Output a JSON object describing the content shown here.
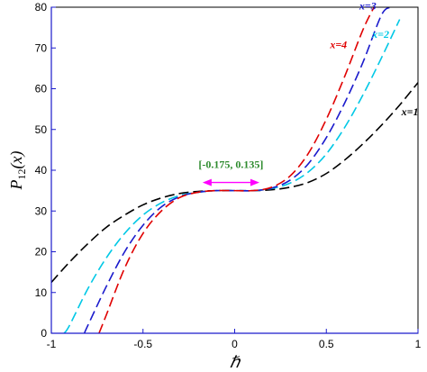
{
  "chart_data": {
    "type": "line",
    "xlabel": "ℏ",
    "ylabel": "P12(x)",
    "ylabel_parts": {
      "main": "P",
      "sub": "12",
      "arg": "(x)"
    },
    "xlim": [
      -1,
      1
    ],
    "ylim": [
      0,
      80
    ],
    "xticks": [
      -1,
      -0.5,
      0,
      0.5,
      1
    ],
    "xtick_labels": [
      "-1",
      "-0.5",
      "0",
      "0.5",
      "1"
    ],
    "yticks": [
      0,
      10,
      20,
      30,
      40,
      50,
      60,
      70,
      80
    ],
    "ytick_labels": [
      "0",
      "10",
      "20",
      "30",
      "40",
      "50",
      "60",
      "70",
      "80"
    ],
    "grid": false,
    "series": [
      {
        "name": "x=1",
        "color": "#000000",
        "x": [
          -1.0,
          -0.9,
          -0.8,
          -0.7,
          -0.6,
          -0.5,
          -0.4,
          -0.3,
          -0.2,
          -0.1,
          0.0,
          0.1,
          0.2,
          0.3,
          0.4,
          0.5,
          0.6,
          0.7,
          0.8,
          0.9,
          1.0
        ],
        "y": [
          12.5,
          17.5,
          22.0,
          26.0,
          29.0,
          31.5,
          33.2,
          34.3,
          34.8,
          35.0,
          35.0,
          35.0,
          35.2,
          35.8,
          37.0,
          39.2,
          42.5,
          46.5,
          51.0,
          56.0,
          61.5
        ]
      },
      {
        "name": "x=2",
        "color": "#00c8e6",
        "x": [
          -0.93,
          -0.9,
          -0.8,
          -0.7,
          -0.6,
          -0.5,
          -0.4,
          -0.3,
          -0.2,
          -0.1,
          0.0,
          0.1,
          0.2,
          0.3,
          0.4,
          0.5,
          0.6,
          0.7,
          0.8,
          0.9
        ],
        "y": [
          0.0,
          2.0,
          11.0,
          18.5,
          24.5,
          29.0,
          32.0,
          33.8,
          34.6,
          35.0,
          35.0,
          35.0,
          35.5,
          36.8,
          39.5,
          44.0,
          50.5,
          58.5,
          67.5,
          77.0
        ]
      },
      {
        "name": "x=3",
        "color": "#1a1acc",
        "x": [
          -0.82,
          -0.8,
          -0.7,
          -0.6,
          -0.5,
          -0.4,
          -0.3,
          -0.2,
          -0.1,
          0.0,
          0.1,
          0.2,
          0.3,
          0.4,
          0.5,
          0.6,
          0.7,
          0.8,
          0.85
        ],
        "y": [
          0.0,
          2.0,
          11.5,
          20.0,
          26.5,
          31.0,
          33.5,
          34.6,
          35.0,
          35.0,
          35.0,
          35.6,
          37.5,
          41.5,
          48.0,
          56.5,
          66.5,
          78.0,
          80.0
        ]
      },
      {
        "name": "x=4",
        "color": "#e00000",
        "x": [
          -0.74,
          -0.7,
          -0.6,
          -0.5,
          -0.4,
          -0.3,
          -0.2,
          -0.1,
          0.0,
          0.1,
          0.2,
          0.3,
          0.4,
          0.5,
          0.6,
          0.7,
          0.76
        ],
        "y": [
          0.0,
          4.5,
          16.0,
          24.5,
          30.0,
          33.3,
          34.6,
          35.0,
          35.0,
          35.0,
          35.8,
          38.5,
          44.0,
          52.5,
          63.0,
          74.5,
          80.0
        ]
      }
    ],
    "series_labels": [
      {
        "text": "x=1",
        "color": "#000000",
        "x": 0.91,
        "y": 53.5
      },
      {
        "text": "x=2",
        "color": "#00c8e6",
        "x": 0.75,
        "y": 72.5
      },
      {
        "text": "x=3",
        "color": "#1a1acc",
        "x": 0.68,
        "y": 79.5
      },
      {
        "text": "x=4",
        "color": "#e00000",
        "x": 0.52,
        "y": 70.0
      }
    ],
    "annotations": [
      {
        "text": "[-0.175, 0.135]",
        "color": "#2e8b2e",
        "arrow_color": "#ff00ff",
        "interval": [
          -0.175,
          0.135
        ],
        "arrow_y": 37.0,
        "text_y": 40.5
      }
    ],
    "axis_color": "#1a1acc"
  }
}
